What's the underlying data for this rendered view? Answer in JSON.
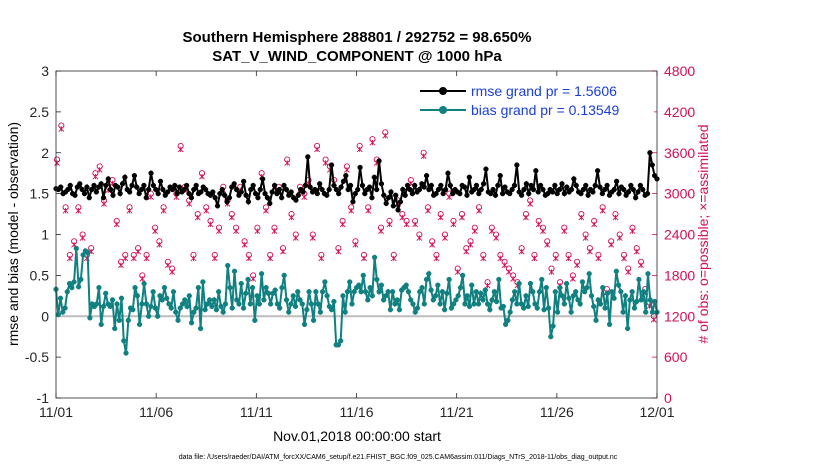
{
  "colors": {
    "rmse": "#000000",
    "bias": "#108080",
    "obs": "#d0105a",
    "legend_text": "#1a3fd6",
    "zero_line": "#bdbdbd"
  },
  "chart_data": {
    "type": "line",
    "title_line1": "Southern Hemisphere 288801 / 292752 = 98.650%",
    "title_line2": "SAT_V_WIND_COMPONENT @ 1000 hPa",
    "xlabel": "Nov.01,2018 00:00:00 start",
    "ylabel_left": "rmse and bias (model - observation)",
    "ylabel_right": "# of obs: o=possible; ×=assimilated",
    "x_tick_labels": [
      "11/01",
      "11/06",
      "11/11",
      "11/16",
      "11/21",
      "11/26",
      "12/01"
    ],
    "x_tick_values": [
      0,
      5,
      10,
      15,
      20,
      25,
      30
    ],
    "xlim": [
      0,
      30
    ],
    "ylim_left": [
      -1,
      3
    ],
    "y_ticks_left": [
      "-1",
      "-0.5",
      "0",
      "0.5",
      "1",
      "1.5",
      "2",
      "2.5",
      "3"
    ],
    "y_tick_values_left": [
      -1,
      -0.5,
      0,
      0.5,
      1,
      1.5,
      2,
      2.5,
      3
    ],
    "ylim_right": [
      0,
      4800
    ],
    "y_ticks_right": [
      "0",
      "600",
      "1200",
      "1800",
      "2400",
      "3000",
      "3600",
      "4200",
      "4800"
    ],
    "y_tick_values_right": [
      0,
      600,
      1200,
      1800,
      2400,
      3000,
      3600,
      4200,
      4800
    ],
    "legend": [
      "rmse grand pr = 1.5606",
      "bias grand pr = 0.13549"
    ],
    "footer": "data file: /Users/raeder/DAI/ATM_forcXX/CAM6_setup/f.e21.FHIST_BGC.f09_025.CAM6assim.011/Diags_NTrS_2018-11/obs_diag_output.nc",
    "series": [
      {
        "name": "rmse",
        "values": [
          1.56,
          1.55,
          1.58,
          1.5,
          1.52,
          1.55,
          1.6,
          1.5,
          1.48,
          1.58,
          1.62,
          1.55,
          1.5,
          1.58,
          1.45,
          1.55,
          1.6,
          1.52,
          1.58,
          1.62,
          1.45,
          1.6,
          1.68,
          1.55,
          1.48,
          1.6,
          1.58,
          1.5,
          1.62,
          1.7,
          1.55,
          1.52,
          1.6,
          1.72,
          1.58,
          1.5,
          1.55,
          1.6,
          1.45,
          1.55,
          1.75,
          1.6,
          1.55,
          1.5,
          1.65,
          1.55,
          1.48,
          1.52,
          1.58,
          1.55,
          1.6,
          1.5,
          1.58,
          1.52,
          1.55,
          1.6,
          1.5,
          1.45,
          1.55,
          1.6,
          1.5,
          1.52,
          1.58,
          1.55,
          1.5,
          1.48,
          1.52,
          1.45,
          1.35,
          1.5,
          1.55,
          1.48,
          1.4,
          1.45,
          1.58,
          1.62,
          1.55,
          1.48,
          1.52,
          1.65,
          1.48,
          1.4,
          1.55,
          1.6,
          1.5,
          1.45,
          1.55,
          1.68,
          1.5,
          1.45,
          1.38,
          1.52,
          1.6,
          1.5,
          1.55,
          1.45,
          1.6,
          1.55,
          1.48,
          1.52,
          1.45,
          1.42,
          1.48,
          1.55,
          1.52,
          1.6,
          1.95,
          1.58,
          1.52,
          1.55,
          1.5,
          1.62,
          1.55,
          1.5,
          1.48,
          1.55,
          1.85,
          1.6,
          1.55,
          1.5,
          1.58,
          1.65,
          1.72,
          1.55,
          1.6,
          1.4,
          1.5,
          1.55,
          1.82,
          1.6,
          1.5,
          1.55,
          1.58,
          1.45,
          1.7,
          1.55,
          1.9,
          1.62,
          1.48,
          1.38,
          1.45,
          1.52,
          1.35,
          1.48,
          1.3,
          1.4,
          1.55,
          1.48,
          1.6,
          1.55,
          1.5,
          1.6,
          1.52,
          1.55,
          1.62,
          1.58,
          1.72,
          1.55,
          1.6,
          1.48,
          1.5,
          1.55,
          1.6,
          1.5,
          1.55,
          1.75,
          1.6,
          1.5,
          1.55,
          1.52,
          1.5,
          1.6,
          1.58,
          1.48,
          1.7,
          1.52,
          1.55,
          1.6,
          1.5,
          1.55,
          1.62,
          1.8,
          1.52,
          1.5,
          1.55,
          1.48,
          1.6,
          1.72,
          1.5,
          1.58,
          1.52,
          1.5,
          1.55,
          1.6,
          1.85,
          1.52,
          1.48,
          1.55,
          1.62,
          1.5,
          1.6,
          1.55,
          1.78,
          1.52,
          1.6,
          1.55,
          1.48,
          1.5,
          1.55,
          1.52,
          1.6,
          1.5,
          1.55,
          1.62,
          1.5,
          1.58,
          1.52,
          1.55,
          1.68,
          1.6,
          1.52,
          1.5,
          1.55,
          1.6,
          1.48,
          1.55,
          1.52,
          1.6,
          1.78,
          1.58,
          1.5,
          1.55,
          1.6,
          1.48,
          1.52,
          1.55,
          1.65,
          1.5,
          1.58,
          1.55,
          1.48,
          1.52,
          1.6,
          1.55,
          1.45,
          1.52,
          1.6,
          1.55,
          1.48,
          1.5,
          2.0,
          1.85,
          1.72,
          1.68
        ]
      },
      {
        "name": "bias",
        "values": [
          0.33,
          0.02,
          0.22,
          0.05,
          0.1,
          0.3,
          0.4,
          0.35,
          0.42,
          0.83,
          0.36,
          0.45,
          0.75,
          0.8,
          0.78,
          -0.02,
          0.15,
          0.12,
          0.15,
          0.35,
          -0.1,
          0.12,
          0.28,
          0.15,
          0.12,
          0.2,
          -0.15,
          0.15,
          -0.05,
          0.22,
          -0.3,
          -0.45,
          -0.05,
          0.1,
          0.08,
          0.35,
          0.25,
          -0.1,
          0.15,
          0.4,
          0.15,
          0.0,
          0.12,
          0.3,
          0.1,
          0.0,
          0.25,
          0.2,
          0.35,
          0.22,
          0.15,
          0.1,
          0.3,
          0.05,
          -0.05,
          0.1,
          0.15,
          0.2,
          0.12,
          0.25,
          -0.08,
          0.05,
          0.1,
          0.35,
          -0.15,
          0.42,
          0.08,
          0.15,
          0.2,
          0.12,
          0.2,
          0.08,
          0.3,
          0.12,
          0.05,
          0.15,
          0.62,
          0.35,
          0.1,
          0.55,
          0.2,
          0.15,
          0.4,
          0.1,
          0.28,
          0.45,
          0.15,
          0.35,
          -0.05,
          0.25,
          0.15,
          0.52,
          0.2,
          0.35,
          0.28,
          0.15,
          0.28,
          0.32,
          0.15,
          0.1,
          0.35,
          0.5,
          0.2,
          0.05,
          0.15,
          0.25,
          0.12,
          0.3,
          0.2,
          0.15,
          -0.1,
          0.08,
          0.3,
          0.15,
          -0.05,
          0.3,
          0.15,
          0.05,
          0.3,
          0.42,
          0.25,
          0.12,
          0.08,
          0.18,
          -0.35,
          -0.35,
          -0.3,
          0.25,
          0.05,
          0.3,
          0.42,
          0.15,
          0.3,
          0.35,
          0.38,
          0.3,
          0.5,
          0.3,
          0.2,
          0.35,
          0.25,
          0.72,
          0.45,
          0.3,
          0.38,
          0.2,
          0.25,
          0.3,
          0.08,
          0.3,
          0.15,
          0.2,
          0.08,
          0.32,
          0.35,
          0.38,
          0.3,
          0.2,
          0.15,
          0.05,
          0.1,
          0.3,
          0.35,
          0.15,
          0.45,
          0.52,
          0.32,
          0.2,
          0.25,
          0.38,
          0.15,
          0.3,
          0.08,
          0.28,
          0.45,
          0.1,
          0.15,
          0.2,
          0.25,
          0.35,
          0.5,
          0.15,
          0.25,
          0.12,
          0.38,
          0.15,
          0.3,
          0.15,
          0.28,
          0.2,
          0.32,
          0.15,
          0.08,
          0.2,
          0.3,
          0.18,
          0.45,
          0.1,
          0.12,
          -0.1,
          -0.05,
          0.05,
          0.2,
          0.3,
          0.15,
          0.4,
          0.15,
          0.1,
          0.25,
          0.12,
          0.4,
          0.3,
          0.15,
          0.1,
          0.3,
          0.45,
          0.08,
          0.35,
          0.1,
          -0.25,
          -0.12,
          0.3,
          0.05,
          0.35,
          0.25,
          0.15,
          0.4,
          0.22,
          0.05,
          0.25,
          0.3,
          0.2,
          0.15,
          0.42,
          0.3,
          0.35,
          0.52,
          0.25,
          0.12,
          -0.05,
          0.2,
          0.15,
          0.35,
          0.1,
          0.28,
          -0.1,
          0.3,
          0.22,
          0.55,
          0.38,
          0.3,
          0.05,
          0.25,
          -0.15,
          0.2,
          0.3,
          0.1,
          0.18,
          0.45,
          0.2,
          0.3,
          0.05,
          0.52,
          0.2,
          0.05,
          0.18,
          0.05
        ]
      },
      {
        "name": "obs_possible",
        "values": [
          3500,
          4000,
          2800,
          2100,
          2300,
          2800,
          2400,
          2100,
          2200,
          3300,
          3400,
          2900,
          3100,
          3200,
          2600,
          2000,
          2100,
          2800,
          2100,
          2200,
          1800,
          2100,
          3000,
          2500,
          2300,
          2800,
          2000,
          1900,
          3000,
          3700,
          3100,
          2900,
          2100,
          2700,
          3300,
          2800,
          2600,
          2100,
          2500,
          3100,
          2900,
          2700,
          2500,
          3100,
          2300,
          2100,
          1800,
          2500,
          3300,
          2800,
          2100,
          2500,
          3100,
          2200,
          3500,
          2700,
          2400,
          3100,
          3000,
          3200,
          2400,
          3700,
          2100,
          3500,
          3400,
          3200,
          2200,
          2600,
          3400,
          2800,
          2300,
          3700,
          2100,
          2800,
          3800,
          3500,
          2500,
          3900,
          2600,
          2100,
          2900,
          2700,
          2600,
          3200,
          2600,
          2400,
          3600,
          2800,
          2300,
          2100,
          2700,
          2400,
          3000,
          2600,
          1900,
          2700,
          2200,
          2300,
          2500,
          2800,
          2100,
          1700,
          2500,
          2400,
          2100,
          2000,
          1900,
          1800,
          1700,
          2200,
          2700,
          2900,
          2100,
          2600,
          2500,
          2300,
          1900,
          2100,
          1700,
          2500,
          2100,
          1800,
          2000,
          2700,
          2400,
          2200,
          2600,
          2100,
          2800,
          1600,
          2300,
          2700,
          2400,
          2100,
          1900,
          2500,
          2200,
          2000,
          1600,
          1400,
          1200
        ]
      },
      {
        "name": "obs_assimilated",
        "values": [
          3450,
          3950,
          2750,
          2050,
          2250,
          2750,
          2350,
          2050,
          2150,
          3250,
          3350,
          2850,
          3050,
          3150,
          2550,
          1950,
          2050,
          2750,
          2050,
          2150,
          1750,
          2050,
          2950,
          2450,
          2250,
          2750,
          1950,
          1850,
          2950,
          3650,
          3050,
          2850,
          2050,
          2650,
          3250,
          2750,
          2550,
          2050,
          2450,
          3050,
          2850,
          2650,
          2450,
          3050,
          2250,
          2050,
          1750,
          2450,
          3250,
          2750,
          2050,
          2450,
          3050,
          2150,
          3450,
          2650,
          2350,
          3050,
          2950,
          3150,
          2350,
          3650,
          2050,
          3450,
          3350,
          3150,
          2150,
          2550,
          3350,
          2750,
          2250,
          3650,
          2050,
          2750,
          3750,
          3450,
          2450,
          3850,
          2550,
          2050,
          2850,
          2650,
          2550,
          3150,
          2550,
          2350,
          3550,
          2750,
          2250,
          2050,
          2650,
          2350,
          2950,
          2550,
          1850,
          2650,
          2150,
          2250,
          2450,
          2750,
          2050,
          1650,
          2450,
          2350,
          2050,
          1950,
          1850,
          1750,
          1650,
          2150,
          2650,
          2850,
          2050,
          2550,
          2450,
          2250,
          1850,
          2050,
          1650,
          2450,
          2050,
          1750,
          1950,
          2650,
          2350,
          2150,
          2550,
          2050,
          2750,
          1550,
          2250,
          2650,
          2350,
          2050,
          1850,
          2450,
          2150,
          1950,
          1550,
          1350,
          1150
        ]
      }
    ]
  }
}
